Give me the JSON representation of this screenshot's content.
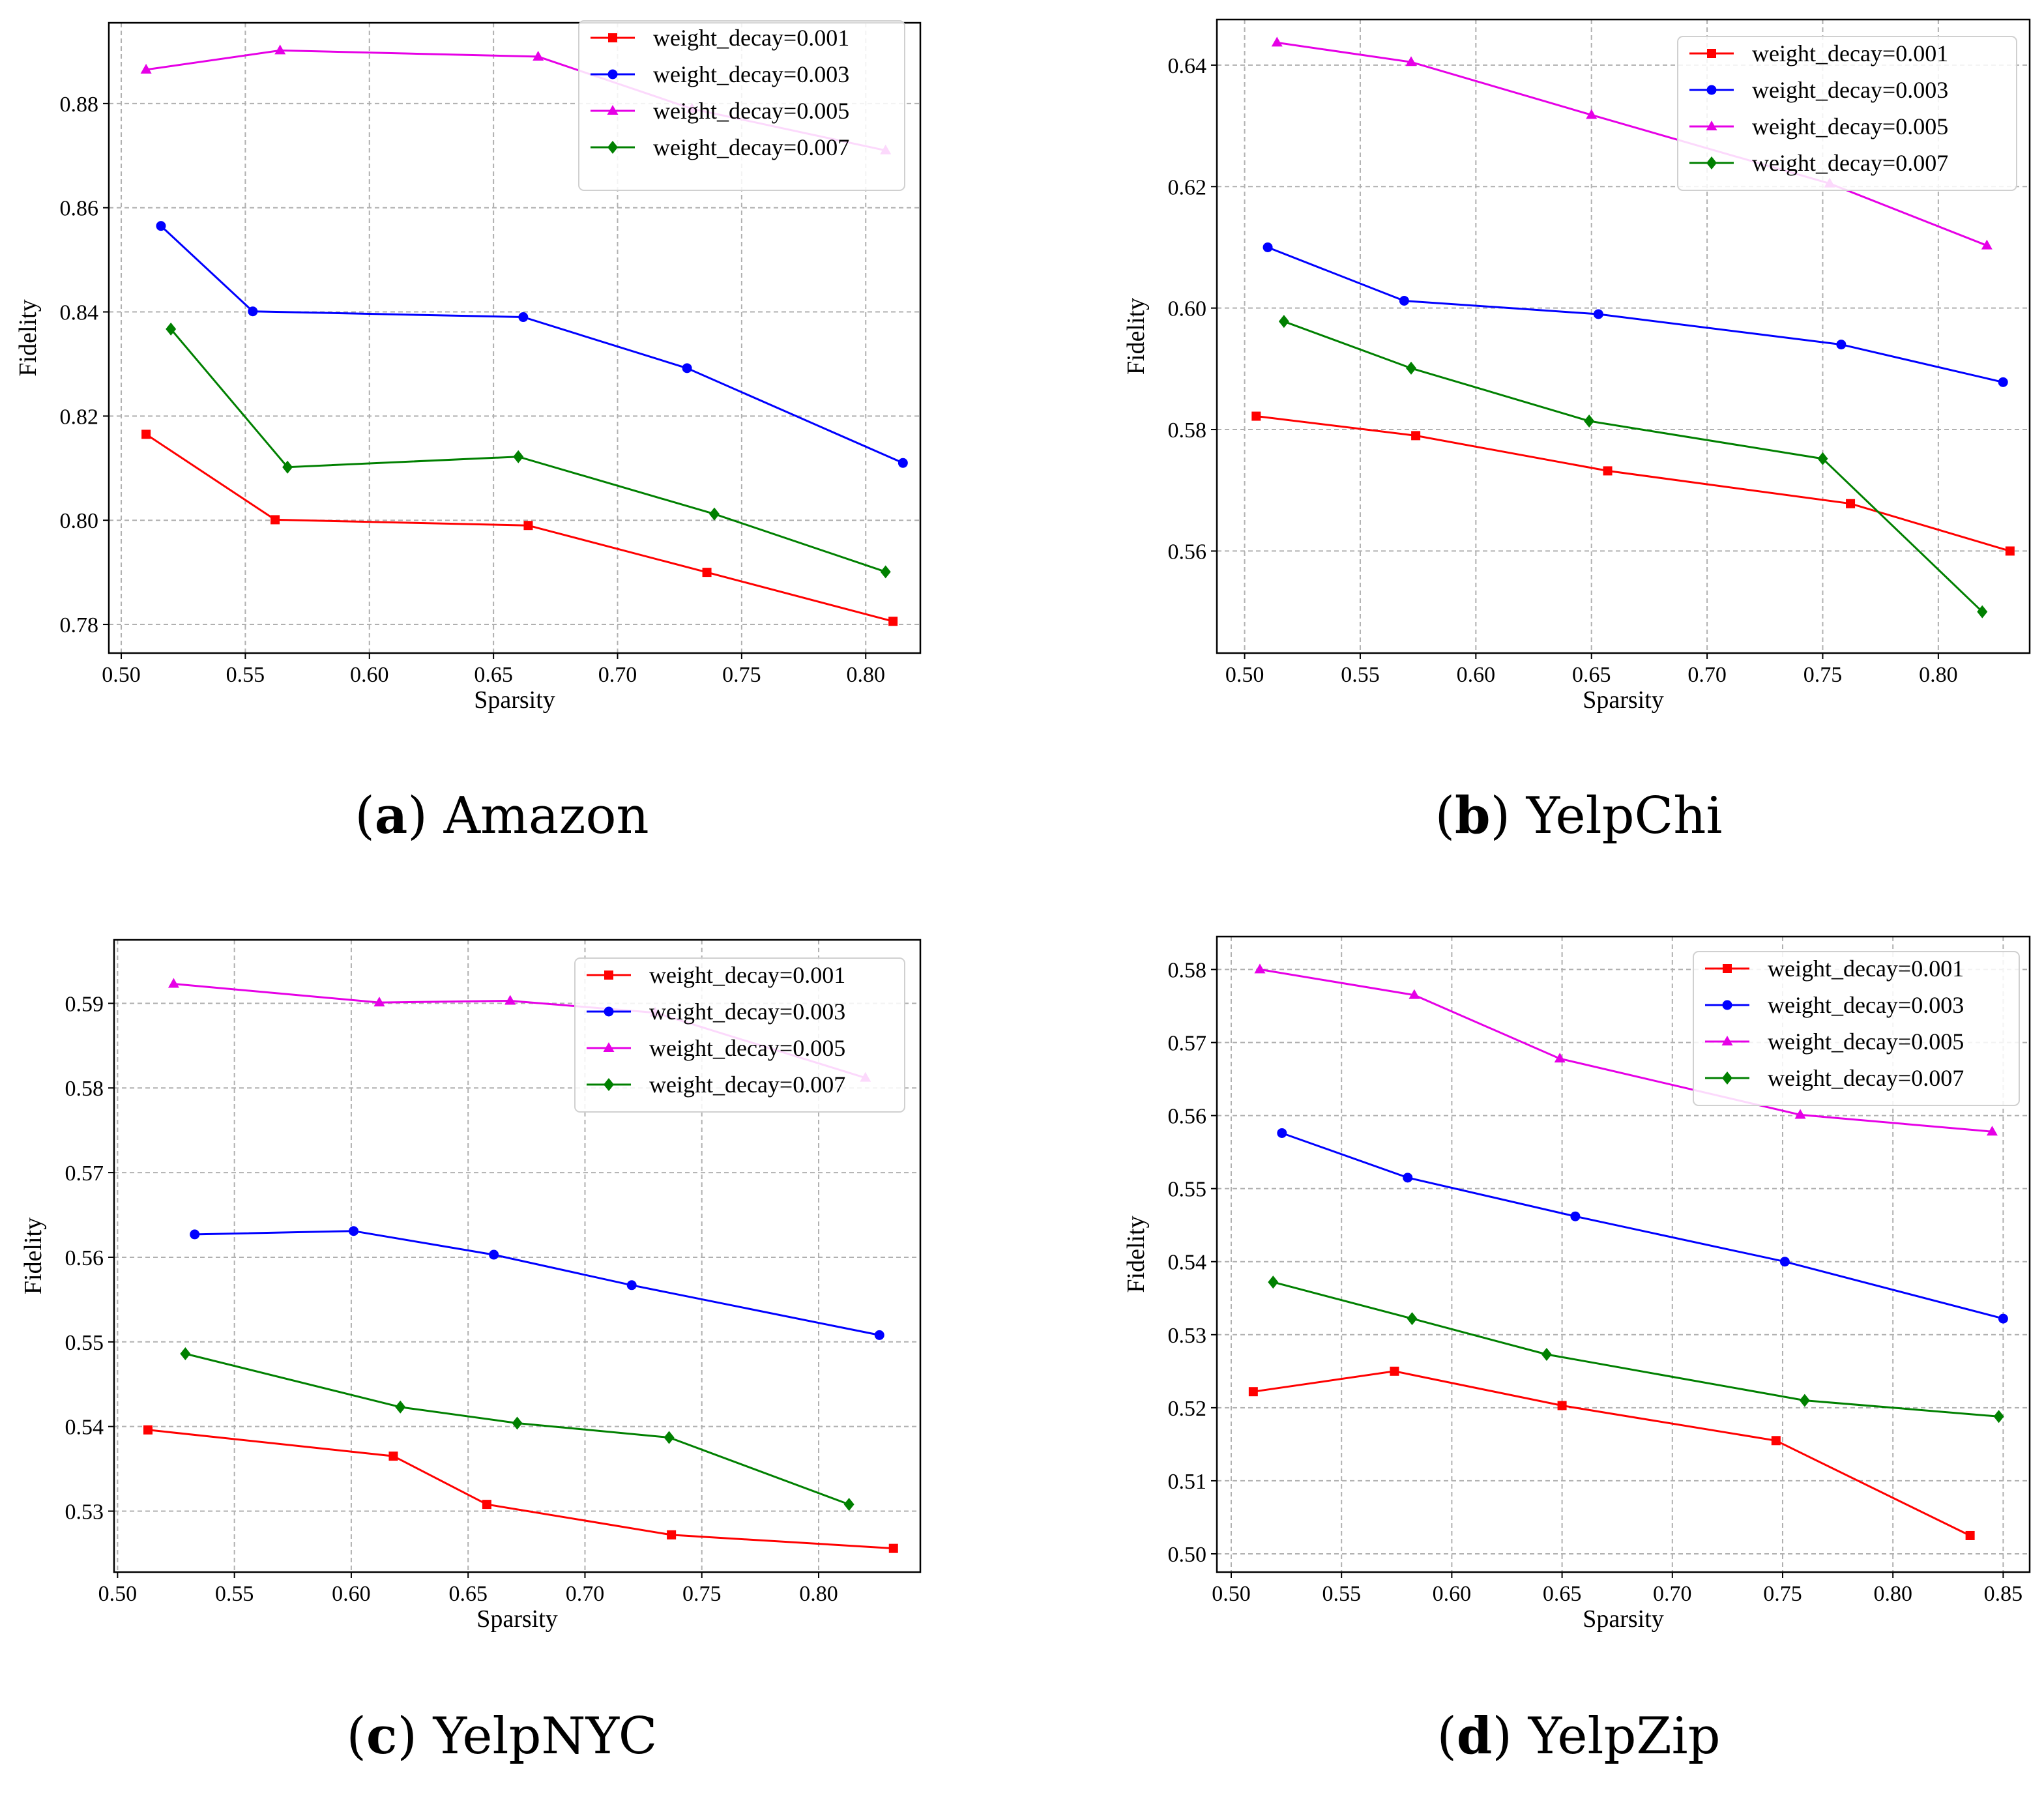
{
  "figure": {
    "legend_entries": [
      "weight_decay=0.001",
      "weight_decay=0.003",
      "weight_decay=0.005",
      "weight_decay=0.007"
    ],
    "series_colors": [
      "#ff0000",
      "#0000ff",
      "#e600e6",
      "#008000"
    ],
    "series_markers": [
      "square",
      "circle",
      "triangle",
      "diamond"
    ]
  },
  "chart_data": [
    {
      "type": "line",
      "caption_letter": "a",
      "caption_name": "Amazon",
      "xlabel": "Sparsity",
      "ylabel": "Fidelity",
      "xlim": [
        0.495,
        0.822
      ],
      "ylim": [
        0.7745,
        0.8955
      ],
      "xticks": [
        0.5,
        0.55,
        0.6,
        0.65,
        0.7,
        0.75,
        0.8
      ],
      "xtick_labels": [
        "0.50",
        "0.55",
        "0.60",
        "0.65",
        "0.70",
        "0.75",
        "0.80"
      ],
      "yticks": [
        0.78,
        0.8,
        0.82,
        0.84,
        0.86,
        0.88
      ],
      "ytick_labels": [
        "0.78",
        "0.80",
        "0.82",
        "0.84",
        "0.86",
        "0.88"
      ],
      "legend_position": "top-right",
      "series": [
        {
          "name": "weight_decay=0.001",
          "x": [
            0.51,
            0.562,
            0.664,
            0.736,
            0.811
          ],
          "y": [
            0.8165,
            0.8001,
            0.799,
            0.79,
            0.7806
          ]
        },
        {
          "name": "weight_decay=0.003",
          "x": [
            0.516,
            0.553,
            0.662,
            0.728,
            0.815
          ],
          "y": [
            0.8565,
            0.8401,
            0.839,
            0.8292,
            0.811
          ]
        },
        {
          "name": "weight_decay=0.005",
          "x": [
            0.51,
            0.564,
            0.668,
            0.73,
            0.808
          ],
          "y": [
            0.8865,
            0.8902,
            0.889,
            0.879,
            0.871
          ]
        },
        {
          "name": "weight_decay=0.007",
          "x": [
            0.52,
            0.567,
            0.66,
            0.739,
            0.808
          ],
          "y": [
            0.8367,
            0.8102,
            0.8122,
            0.8012,
            0.7901
          ]
        }
      ]
    },
    {
      "type": "line",
      "caption_letter": "b",
      "caption_name": "YelpChi",
      "xlabel": "Sparsity",
      "ylabel": "Fidelity",
      "xlim": [
        0.488,
        0.8395
      ],
      "ylim": [
        0.5432,
        0.6475
      ],
      "xticks": [
        0.5,
        0.55,
        0.6,
        0.65,
        0.7,
        0.75,
        0.8
      ],
      "xtick_labels": [
        "0.50",
        "0.55",
        "0.60",
        "0.65",
        "0.70",
        "0.75",
        "0.80"
      ],
      "yticks": [
        0.56,
        0.58,
        0.6,
        0.62,
        0.64
      ],
      "ytick_labels": [
        "0.56",
        "0.58",
        "0.60",
        "0.62",
        "0.64"
      ],
      "legend_position": "top-right",
      "series": [
        {
          "name": "weight_decay=0.001",
          "x": [
            0.505,
            0.574,
            0.657,
            0.762,
            0.831
          ],
          "y": [
            0.5822,
            0.579,
            0.5732,
            0.5678,
            0.56
          ]
        },
        {
          "name": "weight_decay=0.003",
          "x": [
            0.51,
            0.569,
            0.653,
            0.758,
            0.828
          ],
          "y": [
            0.61,
            0.6012,
            0.599,
            0.594,
            0.5878
          ]
        },
        {
          "name": "weight_decay=0.005",
          "x": [
            0.514,
            0.572,
            0.65,
            0.753,
            0.821
          ],
          "y": [
            0.6437,
            0.6405,
            0.6318,
            0.6205,
            0.6103
          ]
        },
        {
          "name": "weight_decay=0.007",
          "x": [
            0.517,
            0.572,
            0.649,
            0.75,
            0.819
          ],
          "y": [
            0.5978,
            0.5901,
            0.5814,
            0.5752,
            0.55
          ]
        }
      ]
    },
    {
      "type": "line",
      "caption_letter": "c",
      "caption_name": "YelpNYC",
      "xlabel": "Sparsity",
      "ylabel": "Fidelity",
      "xlim": [
        0.4985,
        0.8435
      ],
      "ylim": [
        0.5228,
        0.5975
      ],
      "xticks": [
        0.5,
        0.55,
        0.6,
        0.65,
        0.7,
        0.75,
        0.8
      ],
      "xtick_labels": [
        "0.50",
        "0.55",
        "0.60",
        "0.65",
        "0.70",
        "0.75",
        "0.80"
      ],
      "yticks": [
        0.53,
        0.54,
        0.55,
        0.56,
        0.57,
        0.58,
        0.59
      ],
      "ytick_labels": [
        "0.53",
        "0.54",
        "0.55",
        "0.56",
        "0.57",
        "0.58",
        "0.59"
      ],
      "legend_position": "top-right",
      "series": [
        {
          "name": "weight_decay=0.001",
          "x": [
            0.513,
            0.618,
            0.658,
            0.737,
            0.832
          ],
          "y": [
            0.5396,
            0.5365,
            0.5308,
            0.5272,
            0.5256
          ]
        },
        {
          "name": "weight_decay=0.003",
          "x": [
            0.533,
            0.601,
            0.661,
            0.72,
            0.826
          ],
          "y": [
            0.5627,
            0.5631,
            0.5603,
            0.5567,
            0.5508
          ]
        },
        {
          "name": "weight_decay=0.005",
          "x": [
            0.524,
            0.612,
            0.668,
            0.73,
            0.82
          ],
          "y": [
            0.5923,
            0.5901,
            0.5903,
            0.5889,
            0.5812
          ]
        },
        {
          "name": "weight_decay=0.007",
          "x": [
            0.529,
            0.621,
            0.671,
            0.736,
            0.813
          ],
          "y": [
            0.5486,
            0.5423,
            0.5404,
            0.5387,
            0.5308
          ]
        }
      ]
    },
    {
      "type": "line",
      "caption_letter": "d",
      "caption_name": "YelpZip",
      "xlabel": "Sparsity",
      "ylabel": "Fidelity",
      "xlim": [
        0.4935,
        0.862
      ],
      "ylim": [
        0.4975,
        0.5845
      ],
      "xticks": [
        0.5,
        0.55,
        0.6,
        0.65,
        0.7,
        0.75,
        0.8,
        0.85
      ],
      "xtick_labels": [
        "0.50",
        "0.55",
        "0.60",
        "0.65",
        "0.70",
        "0.75",
        "0.80",
        "0.85"
      ],
      "yticks": [
        0.5,
        0.51,
        0.52,
        0.53,
        0.54,
        0.55,
        0.56,
        0.57,
        0.58
      ],
      "ytick_labels": [
        "0.50",
        "0.51",
        "0.52",
        "0.53",
        "0.54",
        "0.55",
        "0.56",
        "0.57",
        "0.58"
      ],
      "legend_position": "top-right",
      "series": [
        {
          "name": "weight_decay=0.001",
          "x": [
            0.51,
            0.574,
            0.65,
            0.747,
            0.835
          ],
          "y": [
            0.5222,
            0.525,
            0.5203,
            0.5155,
            0.5025
          ]
        },
        {
          "name": "weight_decay=0.003",
          "x": [
            0.523,
            0.58,
            0.656,
            0.751,
            0.85
          ],
          "y": [
            0.5576,
            0.5515,
            0.5462,
            0.54,
            0.5322
          ]
        },
        {
          "name": "weight_decay=0.005",
          "x": [
            0.513,
            0.583,
            0.649,
            0.758,
            0.845
          ],
          "y": [
            0.58,
            0.5765,
            0.5678,
            0.5601,
            0.5578
          ]
        },
        {
          "name": "weight_decay=0.007",
          "x": [
            0.519,
            0.582,
            0.643,
            0.76,
            0.848
          ],
          "y": [
            0.5372,
            0.5322,
            0.5273,
            0.521,
            0.5188
          ]
        }
      ]
    }
  ]
}
